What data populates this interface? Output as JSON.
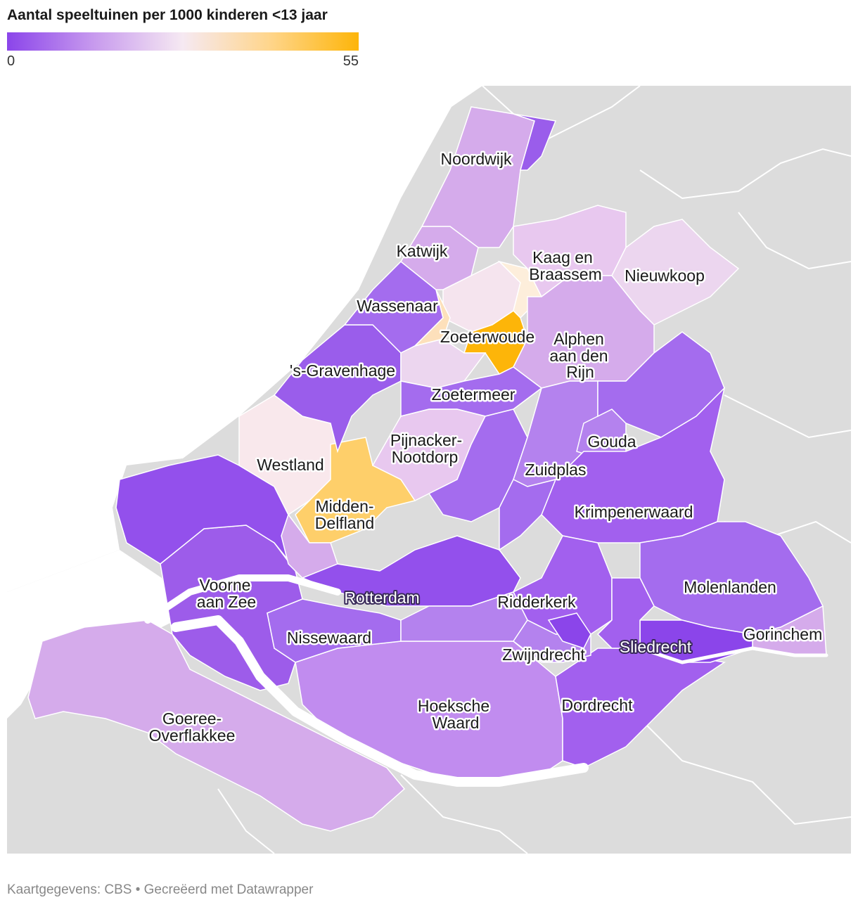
{
  "title": "Aantal speeltuinen per 1000 kinderen <13 jaar",
  "legend": {
    "min": "0",
    "max": "55",
    "colors": [
      "#8b45ea",
      "#c89bee",
      "#f6e9f2",
      "#ffd58a",
      "#fdb509"
    ]
  },
  "footer": "Kaartgegevens: CBS • Gecreëerd met Datawrapper",
  "colors": {
    "background_land": "#dcdcdc",
    "water": "#ffffff",
    "border": "#ffffff"
  },
  "municipalities": [
    {
      "name": "Noordwijk",
      "color": "#d5abeb"
    },
    {
      "name": "Katwijk",
      "color": "#d5abeb"
    },
    {
      "name": "Kaag en Braassem",
      "color": "#e8c8ef"
    },
    {
      "name": "Nieuwkoop",
      "color": "#ecd6ef"
    },
    {
      "name": "Wassenaar",
      "color": "#a46cee"
    },
    {
      "name": "Zoeterwoude",
      "color": "#fdb509"
    },
    {
      "name": "Alphen aan den Rijn",
      "color": "#d5abeb"
    },
    {
      "name": "'s-Gravenhage",
      "color": "#9a5deb"
    },
    {
      "name": "Zoetermeer",
      "color": "#a46cee"
    },
    {
      "name": "Pijnacker-Nootdorp",
      "color": "#e8c8ef"
    },
    {
      "name": "Gouda",
      "color": "#b482ee"
    },
    {
      "name": "Westland",
      "color": "#f9e8ec"
    },
    {
      "name": "Zuidplas",
      "color": "#b482ee"
    },
    {
      "name": "Midden-Delfland",
      "color": "#fecf6a"
    },
    {
      "name": "Krimpenerwaard",
      "color": "#a260ee"
    },
    {
      "name": "Voorne aan Zee",
      "color": "#9d5cea"
    },
    {
      "name": "Rotterdam",
      "color": "#9350ec"
    },
    {
      "name": "Molenlanden",
      "color": "#a46cee"
    },
    {
      "name": "Ridderkerk",
      "color": "#a260ee"
    },
    {
      "name": "Nissewaard",
      "color": "#a46cee"
    },
    {
      "name": "Sliedrecht",
      "color": "#8b45ea"
    },
    {
      "name": "Gorinchem",
      "color": "#d5abeb"
    },
    {
      "name": "Zwijndrecht",
      "color": "#b482ee"
    },
    {
      "name": "Hoeksche Waard",
      "color": "#c18cef"
    },
    {
      "name": "Dordrecht",
      "color": "#a260ee"
    },
    {
      "name": "Goeree-Overflakkee",
      "color": "#d5abeb"
    }
  ],
  "labels": {
    "noordwijk": "Noordwijk",
    "katwijk": "Katwijk",
    "kaag_1": "Kaag en",
    "kaag_2": "Braassem",
    "nieuwkoop": "Nieuwkoop",
    "wassenaar": "Wassenaar",
    "zoeterwoude": "Zoeterwoude",
    "alphen_1": "Alphen",
    "alphen_2": "aan den",
    "alphen_3": "Rijn",
    "gravenhage": "'s-Gravenhage",
    "zoetermeer": "Zoetermeer",
    "pijnacker_1": "Pijnacker-",
    "pijnacker_2": "Nootdorp",
    "gouda": "Gouda",
    "westland": "Westland",
    "zuidplas": "Zuidplas",
    "midden_1": "Midden-",
    "midden_2": "Delfland",
    "krimpenerwaard": "Krimpenerwaard",
    "voorne_1": "Voorne",
    "voorne_2": "aan Zee",
    "rotterdam": "Rotterdam",
    "molenlanden": "Molenlanden",
    "ridderkerk": "Ridderkerk",
    "nissewaard": "Nissewaard",
    "sliedrecht": "Sliedrecht",
    "gorinchem": "Gorinchem",
    "zwijndrecht": "Zwijndrecht",
    "hoeksche_1": "Hoeksche",
    "hoeksche_2": "Waard",
    "dordrecht": "Dordrecht",
    "goeree_1": "Goeree-",
    "goeree_2": "Overflakkee"
  }
}
